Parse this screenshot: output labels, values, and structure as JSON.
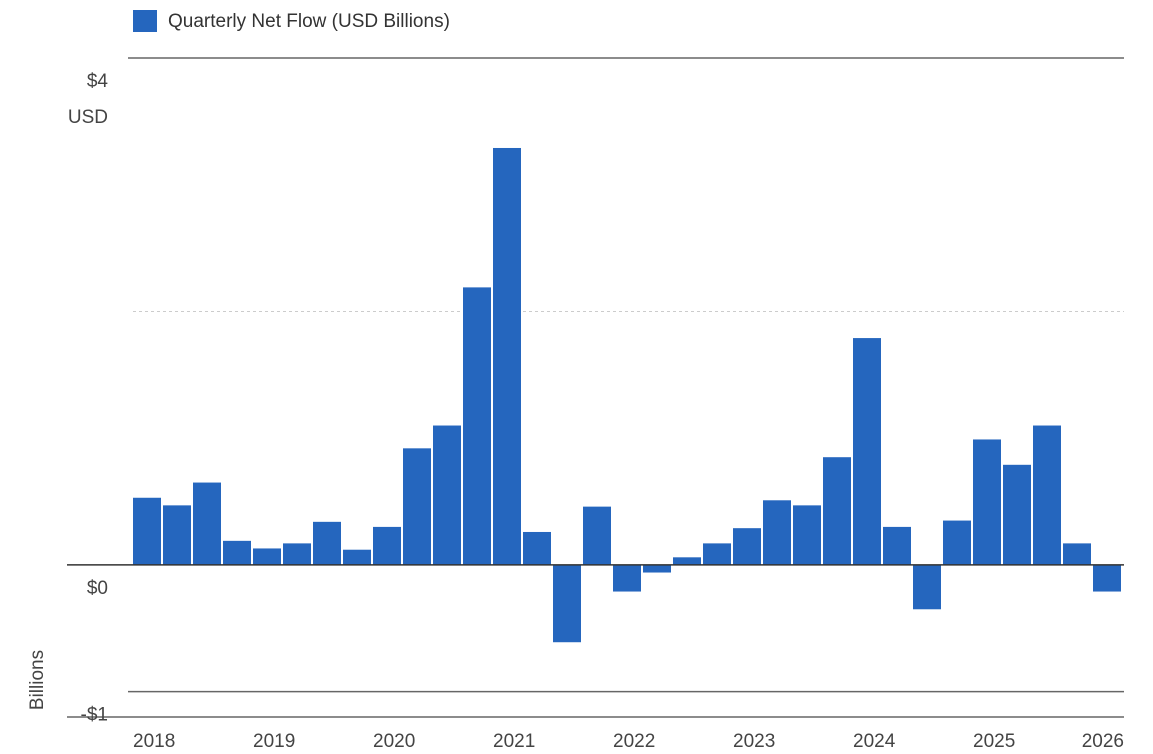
{
  "chart_data": {
    "type": "bar",
    "legend": "Quarterly Net Flow (USD Billions)",
    "y_unit": "USD",
    "y_label": "Billions",
    "color": "#2566be",
    "categories": [
      "2018",
      null,
      null,
      null,
      "2019",
      null,
      null,
      null,
      "2020",
      null,
      null,
      null,
      "2021",
      null,
      null,
      null,
      "2022",
      null,
      null,
      null,
      "2023",
      null,
      null,
      null,
      "2024",
      null,
      null,
      null,
      "2025",
      null,
      null,
      null,
      "2026"
    ],
    "values": [
      0.53,
      0.47,
      0.65,
      0.19,
      0.13,
      0.17,
      0.34,
      0.12,
      0.3,
      0.92,
      1.1,
      2.19,
      3.29,
      0.26,
      -0.61,
      0.46,
      -0.21,
      -0.06,
      0.06,
      0.17,
      0.29,
      0.51,
      0.47,
      0.85,
      1.79,
      0.3,
      -0.35,
      0.35,
      0.99,
      0.79,
      1.1,
      0.17,
      -0.21
    ],
    "ylim": [
      -1.2,
      4
    ],
    "yticks": [
      {
        "value": 4,
        "label": "$4"
      },
      {
        "value": 0,
        "label": "$0"
      },
      {
        "value": -1,
        "label": "-$1"
      }
    ],
    "minor_gridlines": [
      2
    ],
    "grid": true
  }
}
